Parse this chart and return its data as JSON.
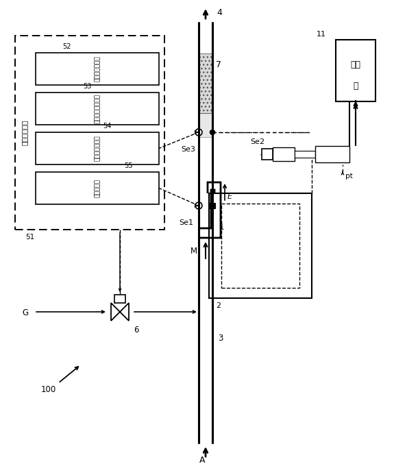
{
  "bg_color": "#ffffff",
  "line_color": "#000000",
  "label_52": "52",
  "label_53": "53",
  "label_54": "54",
  "label_55": "55",
  "label_51": "51",
  "label_4": "4",
  "label_7": "7",
  "label_Se3": "Se3",
  "label_Se1": "Se1",
  "label_Se2": "Se2",
  "label_E": "E",
  "label_1": "1",
  "label_2": "2",
  "label_3": "3",
  "label_6": "6",
  "label_G": "G",
  "label_A": "A",
  "label_M": "M",
  "label_pt": "pt",
  "label_11": "11",
  "label_100": "100",
  "text_control_unit": "制御ユニット",
  "text_52": "エンジン制御部",
  "text_53": "燃焼モード決定部",
  "text_54": "燃焼温度設定部",
  "text_55": "停止制御部",
  "text_11_line1": "起",
  "text_11_line2": "動",
  "text_11_line3": "機"
}
